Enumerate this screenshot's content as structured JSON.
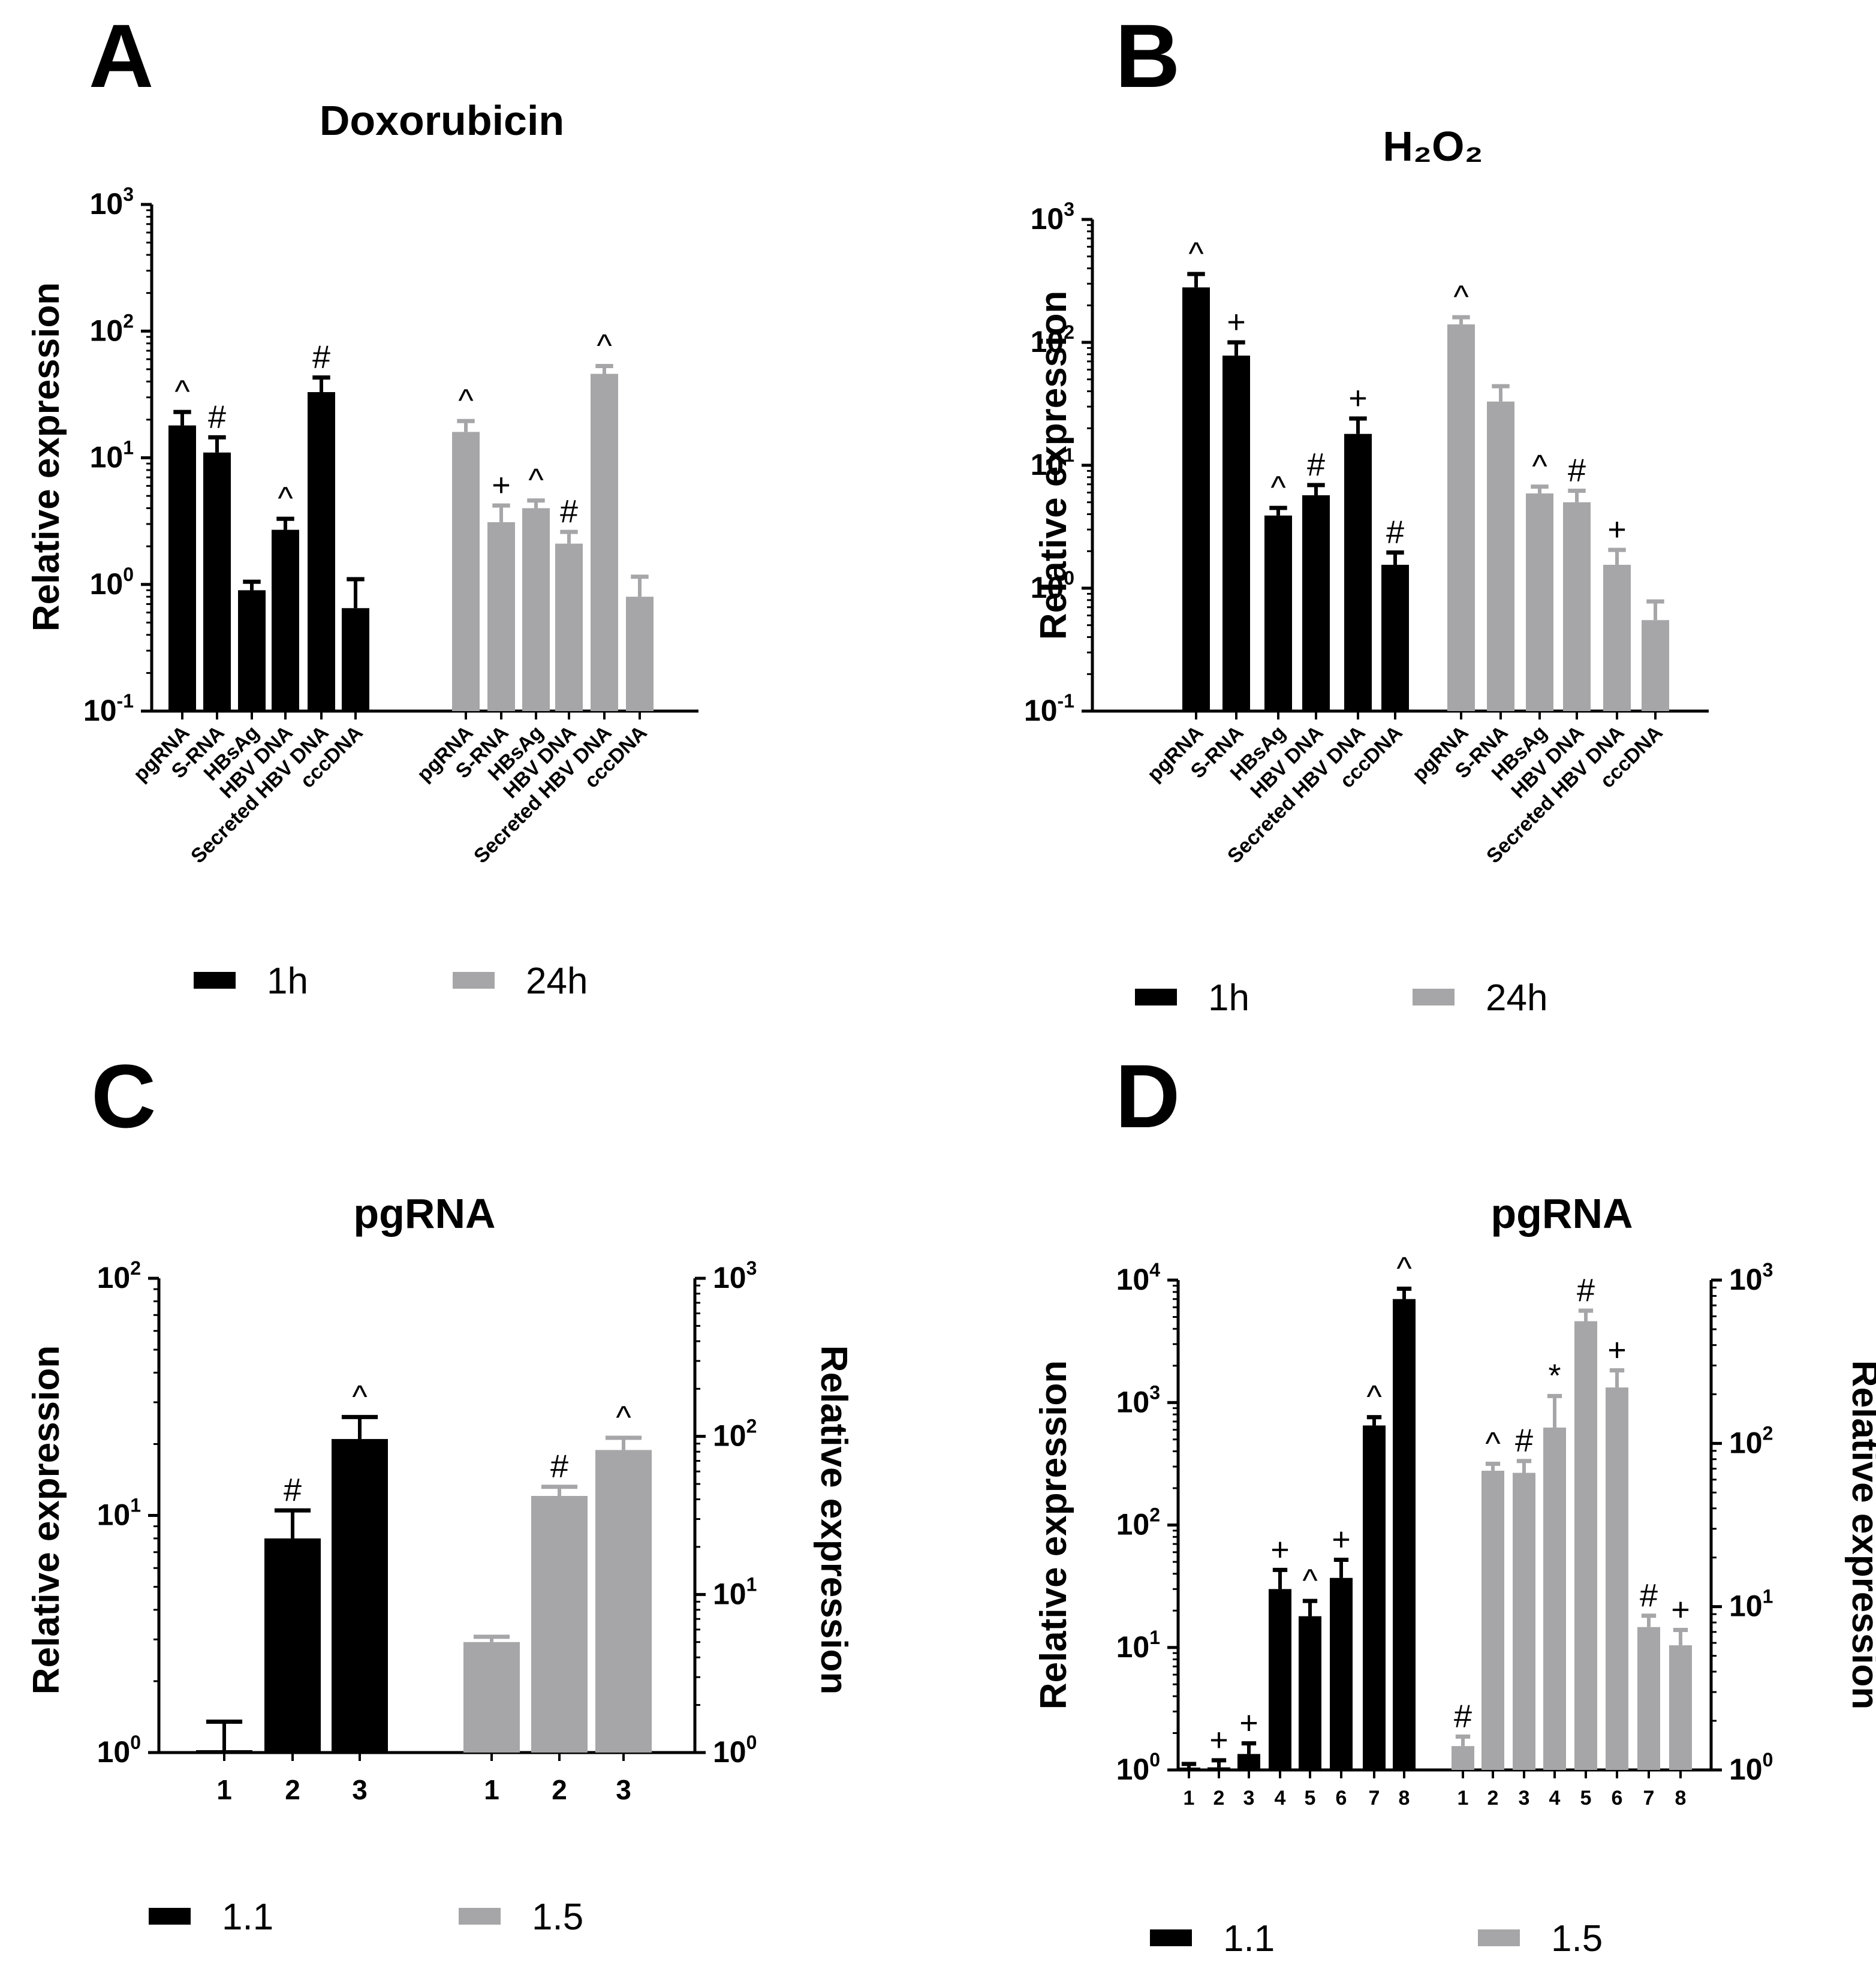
{
  "colors": {
    "black": "#000000",
    "gray": "#a6a6a8"
  },
  "legend_ab": [
    "1h",
    "24h"
  ],
  "legend_cd": [
    "1.1",
    "1.5"
  ],
  "chart_data": [
    {
      "panel": "A",
      "type": "bar",
      "title": "Doxorubicin",
      "scale": "log",
      "ylabel": "Relative expression",
      "ylim": [
        0.1,
        1000
      ],
      "ytick_exponents": [
        "-1",
        "0",
        "1",
        "2",
        "3"
      ],
      "categories": [
        "pgRNA",
        "S-RNA",
        "HBsAg",
        "HBV DNA",
        "Secreted HBV DNA",
        "cccDNA"
      ],
      "series": [
        {
          "name": "1h",
          "values": [
            18,
            11,
            0.9,
            2.7,
            33,
            0.65
          ],
          "errors": [
            23,
            14.5,
            1.05,
            3.3,
            43,
            1.1
          ],
          "markers": [
            "^",
            "#",
            "",
            "^",
            "#",
            ""
          ]
        },
        {
          "name": "24h",
          "values": [
            16,
            3.1,
            4,
            2.1,
            46,
            0.8
          ],
          "errors": [
            19.5,
            4.2,
            4.6,
            2.6,
            53,
            1.15
          ],
          "markers": [
            "^",
            "+",
            "^",
            "#",
            "^",
            ""
          ]
        }
      ]
    },
    {
      "panel": "B",
      "type": "bar",
      "title": "H₂O₂",
      "scale": "log",
      "ylabel": "Relative expression",
      "ylim": [
        0.1,
        1000
      ],
      "ytick_exponents": [
        "-1",
        "0",
        "1",
        "2",
        "3"
      ],
      "categories": [
        "pgRNA",
        "S-RNA",
        "HBsAg",
        "HBV DNA",
        "Secreted HBV DNA",
        "cccDNA"
      ],
      "series": [
        {
          "name": "1h",
          "values": [
            280,
            78,
            3.9,
            5.7,
            18,
            1.55
          ],
          "errors": [
            360,
            100,
            4.5,
            6.9,
            24,
            1.95
          ],
          "markers": [
            "^",
            "+",
            "^",
            "#",
            "+",
            "#"
          ]
        },
        {
          "name": "24h",
          "values": [
            140,
            33,
            5.9,
            5,
            1.55,
            0.55
          ],
          "errors": [
            160,
            44,
            6.7,
            6.2,
            2.05,
            0.78
          ],
          "markers": [
            "^",
            "",
            "^",
            "#",
            "+",
            ""
          ]
        }
      ]
    },
    {
      "panel": "C",
      "type": "bar",
      "title": "pgRNA",
      "scale": "log",
      "ylabel": "Relative expression",
      "ylabel_right": "Relative expression",
      "ylim": [
        1,
        100
      ],
      "ylim_right": [
        1,
        1000
      ],
      "ytick_exponents": [
        "0",
        "1",
        "2"
      ],
      "ytick_exponents_right": [
        "0",
        "1",
        "2",
        "3"
      ],
      "categories": [
        "1",
        "2",
        "3"
      ],
      "series": [
        {
          "name": "1.1",
          "axis": "left",
          "values": [
            1,
            8,
            21
          ],
          "errors": [
            1.35,
            10.5,
            26
          ],
          "markers": [
            "",
            "#",
            "^"
          ]
        },
        {
          "name": "1.5",
          "axis": "right",
          "values": [
            5,
            42,
            82
          ],
          "errors": [
            5.4,
            48,
            98
          ],
          "markers": [
            "",
            "#",
            "^"
          ]
        }
      ]
    },
    {
      "panel": "D",
      "type": "bar",
      "title": "pgRNA",
      "scale": "log",
      "ylabel": "Relative expression",
      "ylabel_right": "Relative expression",
      "ylim": [
        1,
        10000
      ],
      "ylim_right": [
        1,
        1000
      ],
      "ytick_exponents": [
        "0",
        "1",
        "2",
        "3",
        "4"
      ],
      "ytick_exponents_right": [
        "0",
        "1",
        "2",
        "3"
      ],
      "categories": [
        "1",
        "2",
        "3",
        "4",
        "5",
        "6",
        "7",
        "8"
      ],
      "series": [
        {
          "name": "1.1",
          "axis": "left",
          "values": [
            1,
            1.05,
            1.35,
            30,
            18,
            37,
            650,
            7000
          ],
          "errors": [
            1.12,
            1.2,
            1.65,
            43,
            24,
            52,
            760,
            8500
          ],
          "markers": [
            "",
            "+",
            "+",
            "+",
            "^",
            "+",
            "^",
            "^"
          ]
        },
        {
          "name": "1.5",
          "axis": "right",
          "values": [
            1.4,
            68,
            66,
            125,
            560,
            220,
            7.5,
            5.8
          ],
          "errors": [
            1.6,
            75,
            78,
            195,
            650,
            280,
            8.8,
            7.2
          ],
          "markers": [
            "#",
            "^",
            "#",
            "*",
            "#",
            "+",
            "#",
            "+"
          ]
        }
      ]
    }
  ]
}
